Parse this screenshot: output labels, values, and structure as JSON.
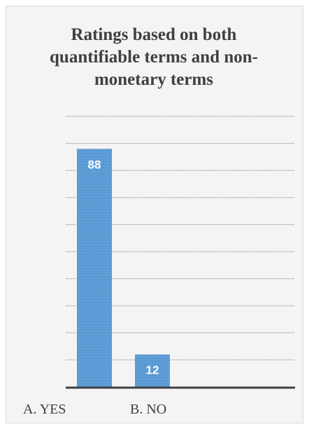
{
  "chart_data": {
    "type": "bar",
    "title": "Ratings based on both quantifiable terms and non-monetary terms",
    "categories": [
      "A. YES",
      "B. NO"
    ],
    "values": [
      88,
      12
    ],
    "data_labels": [
      "88",
      "12"
    ],
    "xlabel": "",
    "ylabel": "",
    "ylim": [
      0,
      100
    ],
    "grid": true,
    "legend": "none",
    "colors": {
      "bar": "#5b9bd5",
      "grid": "#7f7f7f",
      "axis": "#404040",
      "background": "#f4f4f4"
    }
  }
}
